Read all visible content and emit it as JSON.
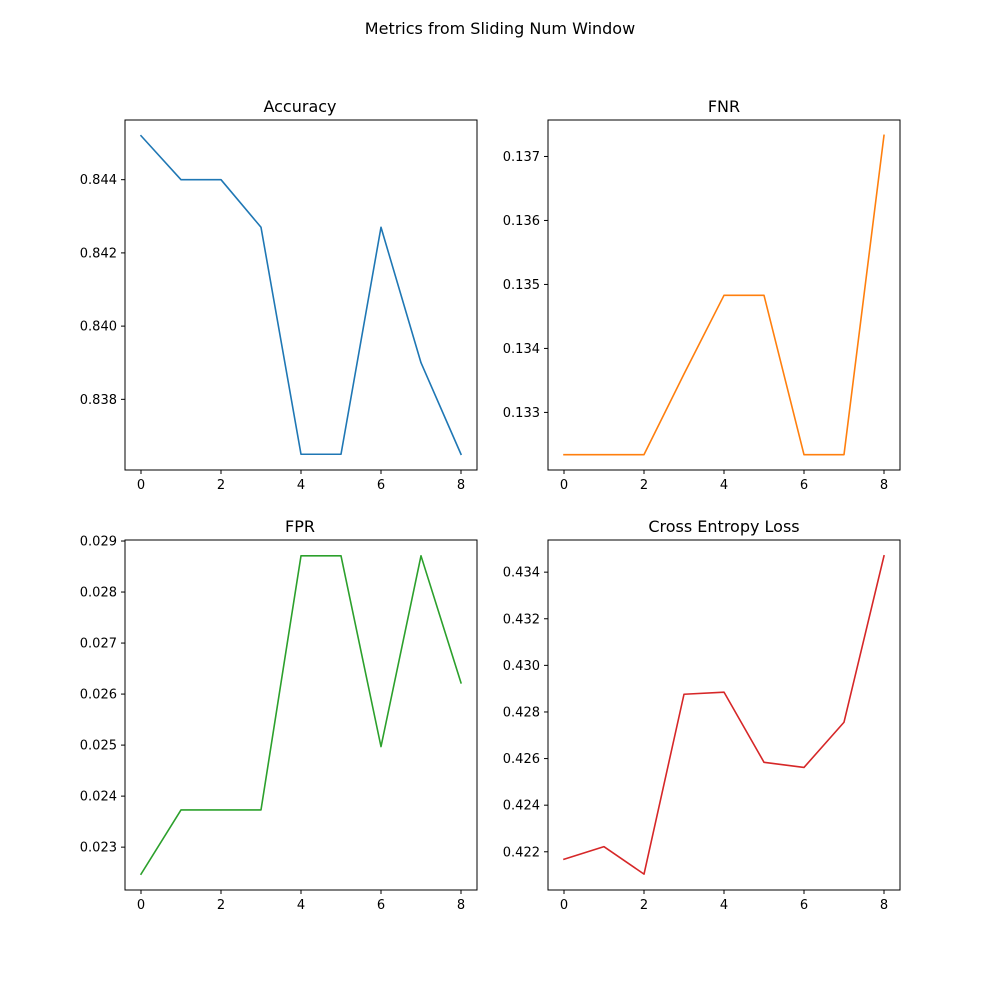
{
  "figure": {
    "suptitle": "Metrics from Sliding Num Window"
  },
  "chart_data": [
    {
      "type": "line",
      "title": "Accuracy",
      "color": "#1f77b4",
      "x": [
        0,
        1,
        2,
        3,
        4,
        5,
        6,
        7,
        8
      ],
      "values": [
        0.8452,
        0.844,
        0.844,
        0.8427,
        0.8365,
        0.8365,
        0.8427,
        0.839,
        0.8365
      ],
      "xticks": [
        0,
        2,
        4,
        6,
        8
      ],
      "yticks": [
        0.838,
        0.84,
        0.842,
        0.844
      ],
      "ytick_labels": [
        "0.838",
        "0.840",
        "0.842",
        "0.844"
      ],
      "xlim": [
        -0.4,
        8.4
      ],
      "ylim": [
        0.83607,
        0.84563
      ]
    },
    {
      "type": "line",
      "title": "FNR",
      "color": "#ff7f0e",
      "x": [
        0,
        1,
        2,
        3,
        4,
        5,
        6,
        7,
        8
      ],
      "values": [
        0.13234,
        0.13234,
        0.13234,
        0.1336,
        0.13483,
        0.13483,
        0.13234,
        0.13234,
        0.13733
      ],
      "xticks": [
        0,
        2,
        4,
        6,
        8
      ],
      "yticks": [
        0.133,
        0.134,
        0.135,
        0.136,
        0.137
      ],
      "ytick_labels": [
        "0.133",
        "0.134",
        "0.135",
        "0.136",
        "0.137"
      ],
      "xlim": [
        -0.4,
        8.4
      ],
      "ylim": [
        0.1321,
        0.13757
      ]
    },
    {
      "type": "line",
      "title": "FPR",
      "color": "#2ca02c",
      "x": [
        0,
        1,
        2,
        3,
        4,
        5,
        6,
        7,
        8
      ],
      "values": [
        0.02247,
        0.02373,
        0.02373,
        0.02373,
        0.02871,
        0.02871,
        0.02497,
        0.02871,
        0.02622
      ],
      "xticks": [
        0,
        2,
        4,
        6,
        8
      ],
      "yticks": [
        0.023,
        0.024,
        0.025,
        0.026,
        0.027,
        0.028,
        0.029
      ],
      "ytick_labels": [
        "0.023",
        "0.024",
        "0.025",
        "0.026",
        "0.027",
        "0.028",
        "0.029"
      ],
      "xlim": [
        -0.4,
        8.4
      ],
      "ylim": [
        0.02216,
        0.02902
      ]
    },
    {
      "type": "line",
      "title": "Cross Entropy Loss",
      "color": "#d62728",
      "x": [
        0,
        1,
        2,
        3,
        4,
        5,
        6,
        7,
        8
      ],
      "values": [
        0.42168,
        0.42222,
        0.42104,
        0.42876,
        0.42885,
        0.42584,
        0.42562,
        0.42756,
        0.4347
      ],
      "xticks": [
        0,
        2,
        4,
        6,
        8
      ],
      "yticks": [
        0.422,
        0.424,
        0.426,
        0.428,
        0.43,
        0.432,
        0.434
      ],
      "ytick_labels": [
        "0.422",
        "0.424",
        "0.426",
        "0.428",
        "0.430",
        "0.432",
        "0.434"
      ],
      "xlim": [
        -0.4,
        8.4
      ],
      "ylim": [
        0.42036,
        0.43538
      ]
    }
  ]
}
